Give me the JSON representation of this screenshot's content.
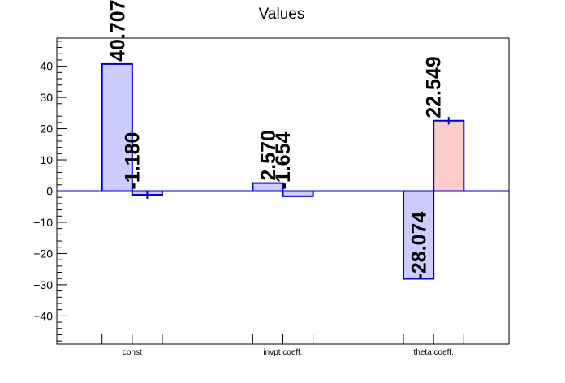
{
  "chart_data": {
    "type": "bar",
    "title": "Values",
    "xlabel": "",
    "ylabel": "",
    "ylim": [
      -49,
      49
    ],
    "yticks": [
      -40,
      -30,
      -20,
      -10,
      0,
      10,
      20,
      30,
      40
    ],
    "ytick_labels": [
      "−40",
      "−30",
      "−20",
      "−10",
      "0",
      "10",
      "20",
      "30",
      "40"
    ],
    "categories": [
      "const",
      "invpt coeff.",
      "theta coeff."
    ],
    "series": [
      {
        "values": [
          40.707,
          2.57,
          -28.074
        ],
        "labels": [
          "40.707",
          "2.570",
          "-28.074"
        ],
        "errors": [
          0,
          0,
          0
        ],
        "fill": "#ccccff",
        "stroke": "#0000cc"
      },
      {
        "values": [
          -1.18,
          -1.654,
          22.549
        ],
        "labels": [
          "-1.180",
          "-1.654",
          "22.549"
        ],
        "errors": [
          1.3,
          0,
          1.2
        ],
        "fills": [
          "#ccccff",
          "#ccccff",
          "#ffcccc"
        ],
        "stroke": "#0000cc"
      }
    ],
    "grid": false,
    "legend": "none"
  }
}
